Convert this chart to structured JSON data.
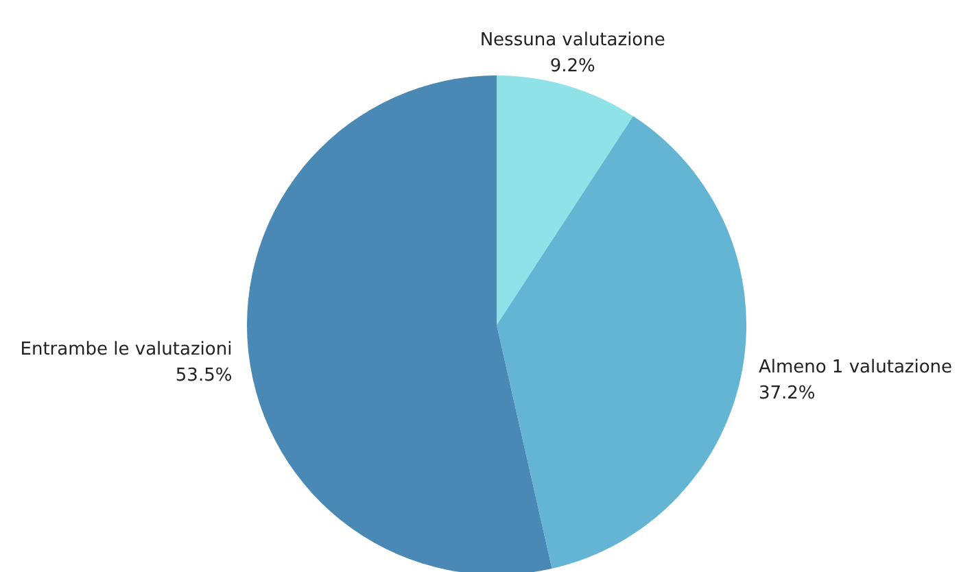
{
  "chart_data": {
    "type": "pie",
    "categories": [
      "Nessuna valutazione",
      "Almeno 1 valutazione",
      "Entrambe le valutazioni"
    ],
    "values": [
      9.2,
      37.2,
      53.5
    ],
    "colors": [
      "#8fe3e8",
      "#64b4d3",
      "#4a89b5"
    ],
    "value_labels": [
      "9.2%",
      "37.2%",
      "53.5%"
    ]
  }
}
